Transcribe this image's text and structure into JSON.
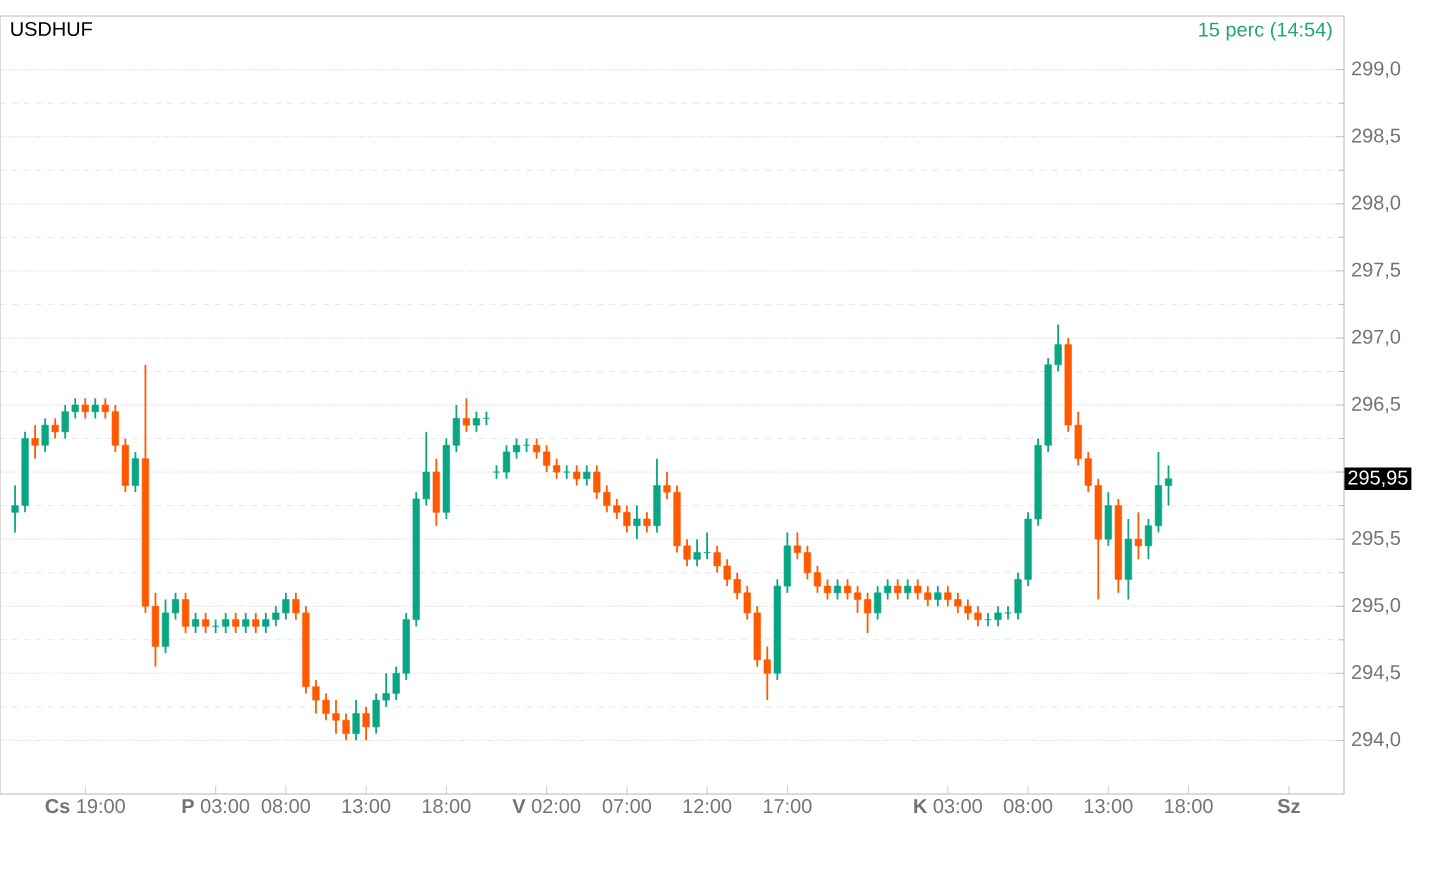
{
  "chart_data": {
    "type": "candlestick",
    "title": "USDHUF",
    "subtitle": "15 perc (14:54)",
    "categories": [
      null,
      null,
      null,
      null,
      null,
      null,
      null,
      null,
      "**Cs** 19:00",
      null,
      null,
      null,
      null,
      null,
      null,
      null,
      null,
      null,
      null,
      null,
      null,
      "**P** 03:00",
      null,
      null,
      null,
      null,
      null,
      null,
      "08:00",
      null,
      null,
      null,
      null,
      null,
      null,
      null,
      "13:00",
      null,
      null,
      null,
      null,
      null,
      null,
      null,
      "18:00",
      null,
      null,
      null,
      null,
      null,
      null,
      null,
      null,
      null,
      "**V** 02:00",
      null,
      null,
      null,
      null,
      null,
      null,
      null,
      "07:00",
      null,
      null,
      null,
      null,
      null,
      null,
      null,
      "12:00",
      null,
      null,
      null,
      null,
      null,
      null,
      null,
      "17:00",
      null,
      null,
      null,
      null,
      null,
      null,
      null,
      null,
      null,
      null,
      null,
      null,
      null,
      null,
      null,
      "**K** 03:00",
      null,
      null,
      null,
      null,
      null,
      null,
      null,
      "08:00",
      null,
      null,
      null,
      null,
      null,
      null,
      null,
      "13:00",
      null,
      null,
      null,
      null,
      null,
      null,
      null,
      "18:00",
      null,
      null,
      null,
      null,
      null,
      null,
      null,
      null,
      null,
      "**Sz**",
      null,
      null,
      null,
      null,
      null
    ],
    "ohlc": [
      null,
      [
        295.7,
        295.9,
        295.55,
        295.75
      ],
      [
        295.75,
        296.3,
        295.7,
        296.25
      ],
      [
        296.25,
        296.35,
        296.1,
        296.2
      ],
      [
        296.2,
        296.4,
        296.15,
        296.35
      ],
      [
        296.35,
        296.4,
        296.25,
        296.3
      ],
      [
        296.3,
        296.5,
        296.25,
        296.45
      ],
      [
        296.45,
        296.55,
        296.4,
        296.5
      ],
      [
        296.5,
        296.55,
        296.4,
        296.45
      ],
      [
        296.45,
        296.55,
        296.4,
        296.5
      ],
      [
        296.5,
        296.55,
        296.4,
        296.45
      ],
      [
        296.45,
        296.5,
        296.15,
        296.2
      ],
      [
        296.2,
        296.25,
        295.85,
        295.9
      ],
      [
        295.9,
        296.15,
        295.85,
        296.1
      ],
      [
        296.1,
        296.8,
        294.95,
        295.0
      ],
      [
        295.0,
        295.1,
        294.55,
        294.7
      ],
      [
        294.7,
        295.05,
        294.65,
        294.95
      ],
      [
        294.95,
        295.1,
        294.9,
        295.05
      ],
      [
        295.05,
        295.1,
        294.8,
        294.85
      ],
      [
        294.85,
        294.95,
        294.8,
        294.9
      ],
      [
        294.9,
        294.95,
        294.8,
        294.85
      ],
      [
        294.85,
        294.9,
        294.8,
        294.85
      ],
      [
        294.85,
        294.95,
        294.8,
        294.9
      ],
      [
        294.9,
        294.95,
        294.8,
        294.85
      ],
      [
        294.85,
        294.95,
        294.8,
        294.9
      ],
      [
        294.9,
        294.95,
        294.8,
        294.85
      ],
      [
        294.85,
        294.95,
        294.8,
        294.9
      ],
      [
        294.9,
        295.0,
        294.85,
        294.95
      ],
      [
        294.95,
        295.1,
        294.9,
        295.05
      ],
      [
        295.05,
        295.1,
        294.9,
        294.95
      ],
      [
        294.95,
        295.0,
        294.35,
        294.4
      ],
      [
        294.4,
        294.45,
        294.2,
        294.3
      ],
      [
        294.3,
        294.35,
        294.15,
        294.2
      ],
      [
        294.2,
        294.3,
        294.05,
        294.15
      ],
      [
        294.15,
        294.2,
        294.0,
        294.05
      ],
      [
        294.05,
        294.3,
        294.0,
        294.2
      ],
      [
        294.2,
        294.25,
        294.0,
        294.1
      ],
      [
        294.1,
        294.35,
        294.05,
        294.3
      ],
      [
        294.3,
        294.5,
        294.25,
        294.35
      ],
      [
        294.35,
        294.55,
        294.3,
        294.5
      ],
      [
        294.5,
        294.95,
        294.45,
        294.9
      ],
      [
        294.9,
        295.85,
        294.85,
        295.8
      ],
      [
        295.8,
        296.3,
        295.75,
        296.0
      ],
      [
        296.0,
        296.1,
        295.6,
        295.7
      ],
      [
        295.7,
        296.25,
        295.65,
        296.2
      ],
      [
        296.2,
        296.5,
        296.15,
        296.4
      ],
      [
        296.4,
        296.55,
        296.3,
        296.35
      ],
      [
        296.35,
        296.45,
        296.3,
        296.4
      ],
      [
        296.4,
        296.45,
        296.35,
        296.4
      ],
      [
        296.0,
        296.05,
        295.95,
        296.0
      ],
      [
        296.0,
        296.2,
        295.95,
        296.15
      ],
      [
        296.15,
        296.25,
        296.1,
        296.2
      ],
      [
        296.2,
        296.25,
        296.15,
        296.2
      ],
      [
        296.2,
        296.25,
        296.1,
        296.15
      ],
      [
        296.15,
        296.2,
        296.0,
        296.05
      ],
      [
        296.05,
        296.1,
        295.95,
        296.0
      ],
      [
        296.0,
        296.05,
        295.95,
        296.0
      ],
      [
        296.0,
        296.05,
        295.9,
        295.95
      ],
      [
        295.95,
        296.05,
        295.9,
        296.0
      ],
      [
        296.0,
        296.05,
        295.8,
        295.85
      ],
      [
        295.85,
        295.9,
        295.7,
        295.75
      ],
      [
        295.75,
        295.8,
        295.65,
        295.7
      ],
      [
        295.7,
        295.75,
        295.55,
        295.6
      ],
      [
        295.6,
        295.75,
        295.5,
        295.65
      ],
      [
        295.65,
        295.7,
        295.55,
        295.6
      ],
      [
        295.6,
        296.1,
        295.55,
        295.9
      ],
      [
        295.9,
        296.0,
        295.8,
        295.85
      ],
      [
        295.85,
        295.9,
        295.4,
        295.45
      ],
      [
        295.45,
        295.5,
        295.3,
        295.35
      ],
      [
        295.35,
        295.5,
        295.3,
        295.4
      ],
      [
        295.4,
        295.55,
        295.35,
        295.4
      ],
      [
        295.4,
        295.45,
        295.25,
        295.3
      ],
      [
        295.3,
        295.35,
        295.15,
        295.2
      ],
      [
        295.2,
        295.25,
        295.05,
        295.1
      ],
      [
        295.1,
        295.15,
        294.9,
        294.95
      ],
      [
        294.95,
        295.0,
        294.55,
        294.6
      ],
      [
        294.6,
        294.7,
        294.3,
        294.5
      ],
      [
        294.5,
        295.2,
        294.45,
        295.15
      ],
      [
        295.15,
        295.55,
        295.1,
        295.45
      ],
      [
        295.45,
        295.55,
        295.35,
        295.4
      ],
      [
        295.4,
        295.45,
        295.2,
        295.25
      ],
      [
        295.25,
        295.3,
        295.1,
        295.15
      ],
      [
        295.15,
        295.2,
        295.05,
        295.1
      ],
      [
        295.1,
        295.2,
        295.05,
        295.15
      ],
      [
        295.15,
        295.2,
        295.05,
        295.1
      ],
      [
        295.1,
        295.15,
        294.95,
        295.05
      ],
      [
        295.05,
        295.1,
        294.8,
        294.95
      ],
      [
        294.95,
        295.15,
        294.9,
        295.1
      ],
      [
        295.1,
        295.2,
        295.05,
        295.15
      ],
      [
        295.15,
        295.2,
        295.05,
        295.1
      ],
      [
        295.1,
        295.2,
        295.05,
        295.15
      ],
      [
        295.15,
        295.2,
        295.05,
        295.1
      ],
      [
        295.1,
        295.15,
        295.0,
        295.05
      ],
      [
        295.05,
        295.15,
        295.0,
        295.1
      ],
      [
        295.1,
        295.15,
        295.0,
        295.05
      ],
      [
        295.05,
        295.1,
        294.95,
        295.0
      ],
      [
        295.0,
        295.05,
        294.9,
        294.95
      ],
      [
        294.95,
        295.0,
        294.85,
        294.9
      ],
      [
        294.9,
        294.95,
        294.85,
        294.9
      ],
      [
        294.9,
        295.0,
        294.85,
        294.95
      ],
      [
        294.95,
        295.0,
        294.9,
        294.95
      ],
      [
        294.95,
        295.25,
        294.9,
        295.2
      ],
      [
        295.2,
        295.7,
        295.15,
        295.65
      ],
      [
        295.65,
        296.25,
        295.6,
        296.2
      ],
      [
        296.2,
        296.85,
        296.15,
        296.8
      ],
      [
        296.8,
        297.1,
        296.75,
        296.95
      ],
      [
        296.95,
        297.0,
        296.3,
        296.35
      ],
      [
        296.35,
        296.45,
        296.05,
        296.1
      ],
      [
        296.1,
        296.15,
        295.85,
        295.9
      ],
      [
        295.9,
        295.95,
        295.05,
        295.5
      ],
      [
        295.5,
        295.85,
        295.45,
        295.75
      ],
      [
        295.75,
        295.8,
        295.1,
        295.2
      ],
      [
        295.2,
        295.65,
        295.05,
        295.5
      ],
      [
        295.5,
        295.7,
        295.35,
        295.45
      ],
      [
        295.45,
        295.65,
        295.35,
        295.6
      ],
      [
        295.6,
        296.15,
        295.55,
        295.9
      ],
      [
        295.9,
        296.05,
        295.75,
        295.95
      ],
      null,
      null,
      null,
      null,
      null,
      null,
      null,
      null,
      null,
      null,
      null,
      null,
      null,
      null,
      null,
      null,
      null
    ],
    "ylim": [
      293.6,
      299.4
    ],
    "yticks": [
      {
        "value": 294,
        "label": "294,0"
      },
      {
        "value": 294.5,
        "label": "294,5"
      },
      {
        "value": 295,
        "label": "295,0"
      },
      {
        "value": 295.5,
        "label": "295,5"
      },
      {
        "value": 296,
        "label": null
      },
      {
        "value": 296.5,
        "label": "296,5"
      },
      {
        "value": 297,
        "label": "297,0"
      },
      {
        "value": 297.5,
        "label": "297,5"
      },
      {
        "value": 298,
        "label": "298,0"
      },
      {
        "value": 298.5,
        "label": "298,5"
      },
      {
        "value": 299,
        "label": "299,0"
      }
    ],
    "grid": "y",
    "annotations": [
      {
        "text": "295,95",
        "y": 295.95
      }
    ]
  }
}
